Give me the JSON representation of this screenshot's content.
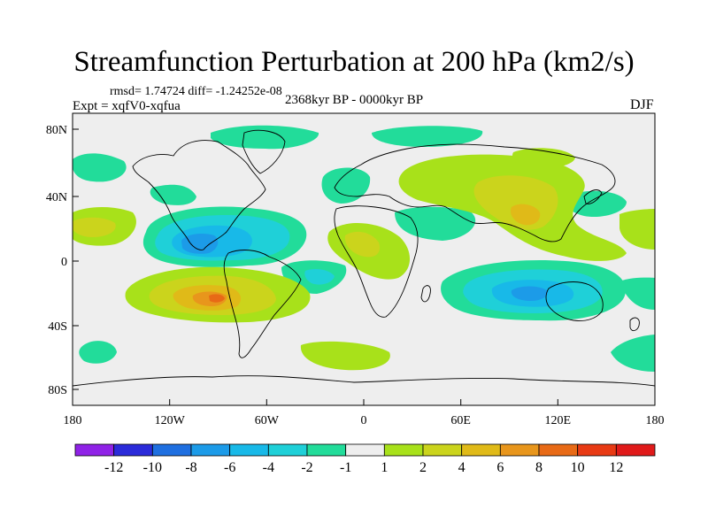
{
  "title": "Streamfunction Perturbation at 200 hPa (km2/s)",
  "stats_text": "rmsd= 1.74724 diff= -1.24252e-08",
  "experiment_text": "Expt = xqfV0-xqfua",
  "period_text": "2368kyr BP - 0000kyr BP",
  "season": "DJF",
  "axes": {
    "lon_ticks": [
      "180",
      "120W",
      "60W",
      "0",
      "60E",
      "120E",
      "180"
    ],
    "lat_ticks": [
      "80N",
      "40N",
      "0",
      "40S",
      "80S"
    ]
  },
  "colorbar": {
    "labels": [
      "-12",
      "-10",
      "-8",
      "-6",
      "-4",
      "-2",
      "-1",
      "1",
      "2",
      "4",
      "6",
      "8",
      "10",
      "12"
    ],
    "colors": [
      "#8f22e6",
      "#2b2bd9",
      "#1f6fe0",
      "#1c9be8",
      "#18b9e8",
      "#1fd0d8",
      "#22dc9a",
      "#eeeeee",
      "#a8e11a",
      "#cbd41c",
      "#e0ba18",
      "#e8961c",
      "#e86a16",
      "#e83a14",
      "#e01a1a"
    ]
  },
  "colors": {
    "background": "#eeeeee",
    "coast": "#000000"
  }
}
